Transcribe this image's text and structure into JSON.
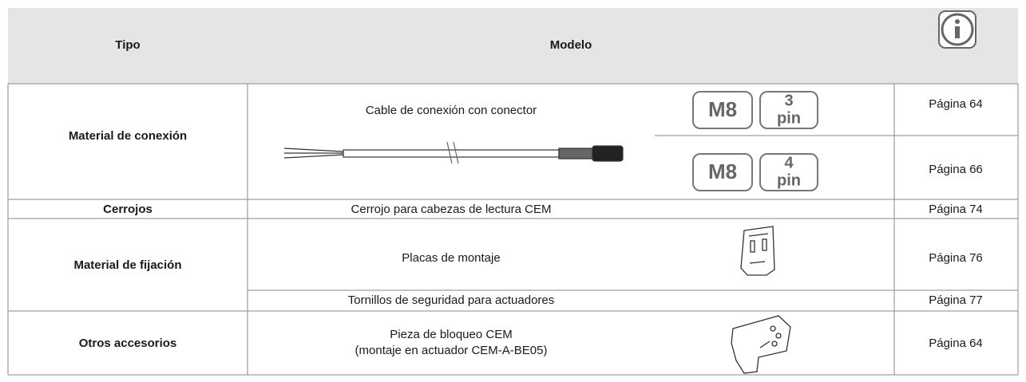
{
  "header": {
    "tipo": "Tipo",
    "modelo": "Modelo"
  },
  "rows": [
    {
      "tipo": "Material de conexión",
      "modelo": "Cable de conexión con conector",
      "variants": [
        {
          "connector": "M8",
          "pins": "3",
          "unit": "pin",
          "page": "Página 64"
        },
        {
          "connector": "M8",
          "pins": "4",
          "unit": "pin",
          "page": "Página 66"
        }
      ]
    },
    {
      "tipo": "Cerrojos",
      "modelo": "Cerrojo para cabezas de lectura CEM",
      "page": "Página 74"
    },
    {
      "tipo": "Material de fijación",
      "items": [
        {
          "modelo": "Placas de montaje",
          "page": "Página 76"
        },
        {
          "modelo": "Tornillos de seguridad para actuadores",
          "page": "Página 77"
        }
      ]
    },
    {
      "tipo": "Otros accesorios",
      "modelo": "Pieza de bloqueo CEM",
      "note": "(montaje en actuador CEM-A-BE05)",
      "page": "Página 64"
    }
  ]
}
